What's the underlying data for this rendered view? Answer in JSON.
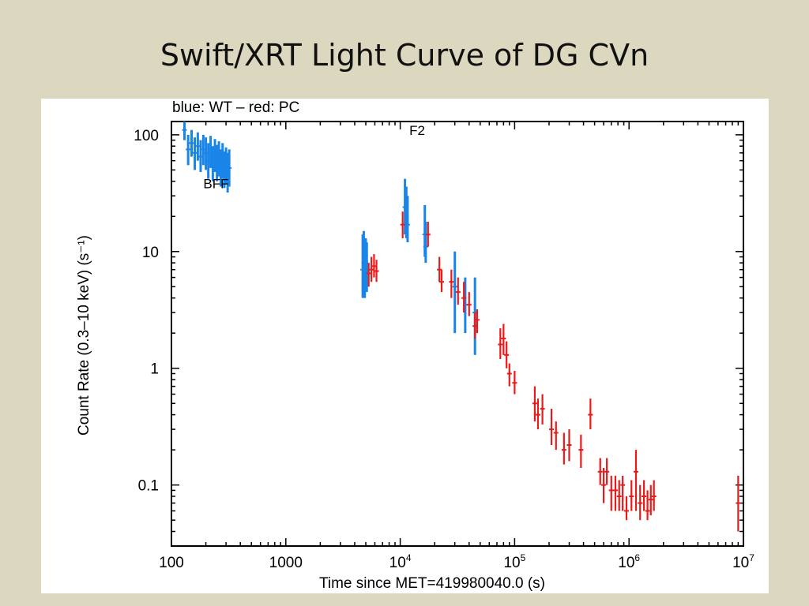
{
  "slide": {
    "title": "Swift/XRT Light Curve of DG CVn"
  },
  "chart_data": {
    "type": "scatter",
    "subtitle": "blue: WT – red: PC",
    "xlabel": "Time since MET=419980040.0 (s)",
    "ylabel": "Count Rate (0.3–10 keV) (s⁻¹)",
    "xscale": "log",
    "yscale": "log",
    "xlim": [
      100,
      10000000
    ],
    "ylim": [
      0.03,
      130
    ],
    "x_ticks": [
      {
        "value": 100,
        "label": "100"
      },
      {
        "value": 1000,
        "label": "1000"
      },
      {
        "value": 10000,
        "base": "10",
        "exp": "4"
      },
      {
        "value": 100000,
        "base": "10",
        "exp": "5"
      },
      {
        "value": 1000000,
        "base": "10",
        "exp": "6"
      },
      {
        "value": 10000000,
        "base": "10",
        "exp": "7"
      }
    ],
    "y_ticks": [
      {
        "value": 0.1,
        "label": "0.1"
      },
      {
        "value": 1,
        "label": "1"
      },
      {
        "value": 10,
        "label": "10"
      },
      {
        "value": 100,
        "label": "100"
      }
    ],
    "annotations": [
      {
        "text": "BFF",
        "x": 190,
        "y": 35
      },
      {
        "text": "F2",
        "x": 12000,
        "y": 100
      }
    ],
    "colors": {
      "WT": "#1a85e8",
      "PC": "#e81a1a"
    },
    "series": [
      {
        "name": "WT",
        "points": [
          [
            130,
            110,
            90,
            130
          ],
          [
            140,
            75,
            55,
            100
          ],
          [
            150,
            85,
            65,
            110
          ],
          [
            160,
            70,
            50,
            95
          ],
          [
            170,
            80,
            60,
            105
          ],
          [
            180,
            65,
            48,
            90
          ],
          [
            190,
            75,
            55,
            100
          ],
          [
            200,
            70,
            50,
            95
          ],
          [
            210,
            60,
            42,
            85
          ],
          [
            220,
            72,
            52,
            98
          ],
          [
            230,
            55,
            40,
            80
          ],
          [
            240,
            68,
            48,
            92
          ],
          [
            250,
            58,
            40,
            82
          ],
          [
            260,
            62,
            44,
            88
          ],
          [
            270,
            52,
            36,
            75
          ],
          [
            280,
            60,
            42,
            85
          ],
          [
            290,
            50,
            35,
            72
          ],
          [
            300,
            55,
            38,
            78
          ],
          [
            310,
            48,
            32,
            70
          ],
          [
            320,
            52,
            36,
            75
          ],
          [
            4700,
            7,
            4,
            14
          ],
          [
            4800,
            8,
            5,
            15
          ],
          [
            4900,
            6,
            4,
            12
          ],
          [
            5000,
            8,
            5,
            13
          ],
          [
            5100,
            7,
            4.5,
            12
          ],
          [
            11000,
            24,
            14,
            42
          ],
          [
            11300,
            20,
            13,
            36
          ],
          [
            11600,
            17,
            12,
            30
          ],
          [
            16400,
            14,
            9,
            25
          ],
          [
            16700,
            11,
            8,
            18
          ],
          [
            30000,
            5,
            2,
            10
          ],
          [
            37000,
            3.5,
            2,
            6
          ],
          [
            45000,
            3,
            1.3,
            6
          ]
        ]
      },
      {
        "name": "PC",
        "points": [
          [
            5300,
            6.5,
            5,
            8
          ],
          [
            5600,
            7,
            5.5,
            9
          ],
          [
            5900,
            7.5,
            6,
            9.5
          ],
          [
            6200,
            6.8,
            5.5,
            8.5
          ],
          [
            10500,
            17,
            13,
            22
          ],
          [
            17500,
            14,
            11,
            18
          ],
          [
            22000,
            7,
            5.5,
            9
          ],
          [
            23000,
            5.5,
            4.5,
            7
          ],
          [
            28000,
            5.5,
            4,
            7
          ],
          [
            32000,
            4.5,
            3.5,
            6
          ],
          [
            36000,
            4,
            3,
            5.5
          ],
          [
            40000,
            3.5,
            2.8,
            4.5
          ],
          [
            45000,
            2.3,
            1.8,
            3
          ],
          [
            47000,
            2.6,
            2,
            3.2
          ],
          [
            75000,
            1.6,
            1.2,
            2.2
          ],
          [
            80000,
            1.8,
            1.3,
            2.4
          ],
          [
            85000,
            1.3,
            1,
            1.7
          ],
          [
            90000,
            0.9,
            0.7,
            1.1
          ],
          [
            100000,
            0.75,
            0.6,
            0.95
          ],
          [
            150000,
            0.5,
            0.35,
            0.7
          ],
          [
            160000,
            0.4,
            0.3,
            0.55
          ],
          [
            175000,
            0.45,
            0.33,
            0.6
          ],
          [
            210000,
            0.3,
            0.22,
            0.45
          ],
          [
            230000,
            0.28,
            0.2,
            0.35
          ],
          [
            270000,
            0.2,
            0.15,
            0.28
          ],
          [
            300000,
            0.22,
            0.16,
            0.3
          ],
          [
            380000,
            0.2,
            0.14,
            0.27
          ],
          [
            460000,
            0.4,
            0.3,
            0.55
          ],
          [
            560000,
            0.13,
            0.1,
            0.17
          ],
          [
            600000,
            0.1,
            0.07,
            0.14
          ],
          [
            640000,
            0.13,
            0.1,
            0.17
          ],
          [
            700000,
            0.09,
            0.06,
            0.12
          ],
          [
            760000,
            0.09,
            0.06,
            0.12
          ],
          [
            820000,
            0.08,
            0.06,
            0.11
          ],
          [
            880000,
            0.1,
            0.06,
            0.12
          ],
          [
            950000,
            0.06,
            0.05,
            0.08
          ],
          [
            1050000,
            0.08,
            0.06,
            0.11
          ],
          [
            1150000,
            0.13,
            0.06,
            0.2
          ],
          [
            1250000,
            0.07,
            0.05,
            0.1
          ],
          [
            1350000,
            0.08,
            0.06,
            0.11
          ],
          [
            1450000,
            0.06,
            0.05,
            0.09
          ],
          [
            1550000,
            0.075,
            0.055,
            0.1
          ],
          [
            1650000,
            0.08,
            0.06,
            0.11
          ],
          [
            9000000,
            0.07,
            0.04,
            0.12
          ]
        ]
      }
    ]
  }
}
